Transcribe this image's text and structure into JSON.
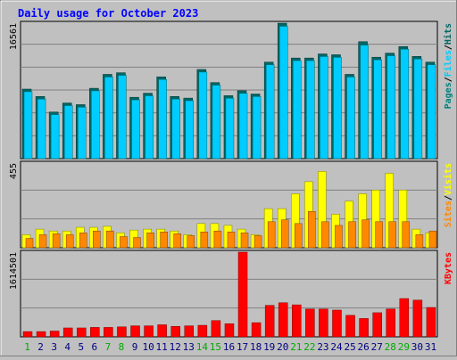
{
  "chart_data": [
    {
      "type": "bar",
      "title": "Daily usage for October 2023",
      "ylabel_max": "16561",
      "legend_parts": [
        "Pages",
        "Files",
        "Hits"
      ],
      "legend_seps": [
        "/",
        "/"
      ],
      "colors": {
        "Hits": "#006666",
        "Files": "#00ccff",
        "Pages": "#008080"
      },
      "categories": [
        "1",
        "2",
        "3",
        "4",
        "5",
        "6",
        "7",
        "8",
        "9",
        "10",
        "11",
        "12",
        "13",
        "14",
        "15",
        "16",
        "17",
        "18",
        "19",
        "20",
        "21",
        "22",
        "23",
        "24",
        "25",
        "26",
        "27",
        "28",
        "29",
        "30",
        "31"
      ],
      "weekend_days": [
        "1",
        "7",
        "8",
        "14",
        "15",
        "21",
        "22",
        "28",
        "29"
      ],
      "ylim": [
        0,
        16561
      ],
      "series": [
        {
          "name": "Hits",
          "values": [
            8500,
            7600,
            5700,
            6800,
            6600,
            8600,
            10300,
            10500,
            7500,
            8000,
            10000,
            7600,
            7400,
            10900,
            9300,
            7700,
            8300,
            7900,
            11800,
            16561,
            12300,
            12300,
            12800,
            12700,
            10300,
            14300,
            12400,
            12900,
            13700,
            12500,
            11800
          ]
        },
        {
          "name": "Files",
          "values": [
            8400,
            7500,
            5600,
            6700,
            6500,
            8500,
            10200,
            10400,
            7400,
            7900,
            9900,
            7500,
            7300,
            10800,
            9200,
            7600,
            8200,
            7800,
            11700,
            16400,
            12200,
            12200,
            12700,
            12600,
            10200,
            14100,
            12300,
            12800,
            13600,
            12400,
            11700
          ]
        }
      ]
    },
    {
      "type": "bar",
      "ylabel_max": "455",
      "legend_parts": [
        "Sites",
        "Visits"
      ],
      "legend_seps": [
        "/"
      ],
      "colors": {
        "Visits": "#ffff00",
        "Sites": "#ff8800"
      },
      "categories": [
        "1",
        "2",
        "3",
        "4",
        "5",
        "6",
        "7",
        "8",
        "9",
        "10",
        "11",
        "12",
        "13",
        "14",
        "15",
        "16",
        "17",
        "18",
        "19",
        "20",
        "21",
        "22",
        "23",
        "24",
        "25",
        "26",
        "27",
        "28",
        "29",
        "30",
        "31"
      ],
      "ylim": [
        0,
        455
      ],
      "series": [
        {
          "name": "Visits",
          "values": [
            70,
            100,
            90,
            90,
            110,
            110,
            115,
            80,
            95,
            100,
            100,
            90,
            70,
            130,
            130,
            120,
            100,
            70,
            210,
            210,
            290,
            355,
            410,
            180,
            250,
            290,
            310,
            400,
            310,
            100,
            80
          ]
        },
        {
          "name": "Sites",
          "values": [
            50,
            70,
            75,
            70,
            80,
            90,
            90,
            60,
            55,
            80,
            85,
            75,
            65,
            85,
            90,
            85,
            80,
            65,
            140,
            150,
            130,
            195,
            140,
            120,
            140,
            150,
            140,
            140,
            140,
            70,
            90
          ]
        }
      ]
    },
    {
      "type": "bar",
      "ylabel_max": "1614501",
      "legend_parts": [
        "KBytes"
      ],
      "legend_seps": [],
      "colors": {
        "KBytes": "#ff0000"
      },
      "categories": [
        "1",
        "2",
        "3",
        "4",
        "5",
        "6",
        "7",
        "8",
        "9",
        "10",
        "11",
        "12",
        "13",
        "14",
        "15",
        "16",
        "17",
        "18",
        "19",
        "20",
        "21",
        "22",
        "23",
        "24",
        "25",
        "26",
        "27",
        "28",
        "29",
        "30",
        "31"
      ],
      "ylim": [
        0,
        1614501
      ],
      "series": [
        {
          "name": "KBytes",
          "values": [
            100000,
            100000,
            110000,
            170000,
            170000,
            180000,
            180000,
            190000,
            210000,
            210000,
            230000,
            200000,
            210000,
            220000,
            310000,
            250000,
            1614501,
            270000,
            600000,
            650000,
            610000,
            530000,
            530000,
            510000,
            410000,
            350000,
            460000,
            530000,
            730000,
            700000,
            560000
          ]
        }
      ]
    }
  ]
}
